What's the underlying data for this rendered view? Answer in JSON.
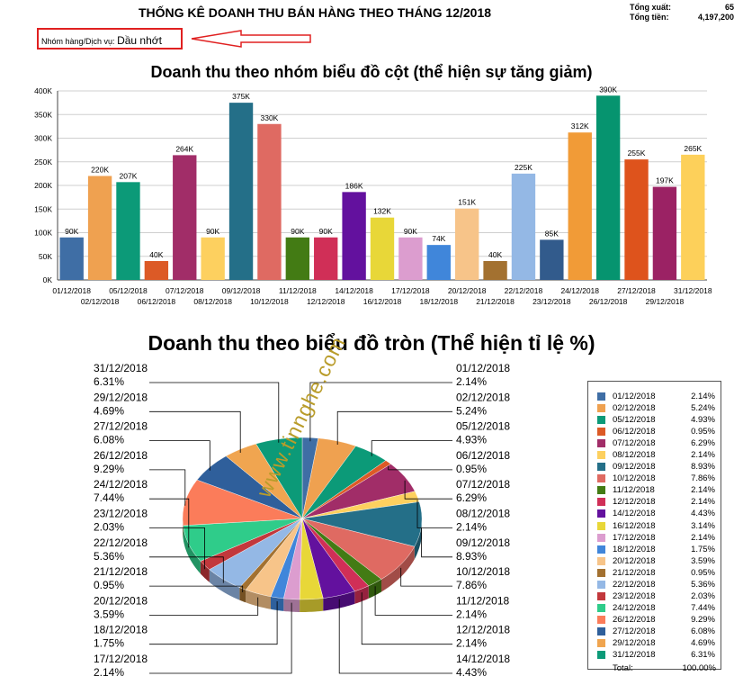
{
  "report": {
    "title": "THỐNG KÊ DOANH THU BÁN HÀNG THEO THÁNG 12/2018",
    "filter_label": "Nhóm hàng/Dịch vụ:",
    "filter_value": "Dầu nhớt",
    "total_export_label": "Tổng xuất:",
    "total_export_value": "65",
    "total_money_label": "Tổng tiền:",
    "total_money_value": "4,197,200"
  },
  "watermark": "www.tinnghe.com",
  "colors": {
    "annotation_red": "#e02020",
    "bar_outline": "#222222",
    "pie_leader": "#000000"
  },
  "chart_data": [
    {
      "type": "bar",
      "title": "Doanh thu theo nhóm biểu đồ cột (thể hiện sự tăng giảm)",
      "ylim": [
        0,
        400000
      ],
      "yticks": [
        "0K",
        "50K",
        "100K",
        "150K",
        "200K",
        "250K",
        "300K",
        "350K",
        "400K"
      ],
      "grid": true,
      "categories": [
        "01/12/2018",
        "02/12/2018",
        "05/12/2018",
        "06/12/2018",
        "07/12/2018",
        "08/12/2018",
        "09/12/2018",
        "10/12/2018",
        "11/12/2018",
        "12/12/2018",
        "14/12/2018",
        "16/12/2018",
        "17/12/2018",
        "18/12/2018",
        "20/12/2018",
        "21/12/2018",
        "22/12/2018",
        "23/12/2018",
        "24/12/2018",
        "26/12/2018",
        "27/12/2018",
        "29/12/2018",
        "31/12/2018"
      ],
      "values": [
        90000,
        220000,
        207000,
        40000,
        264000,
        90000,
        375000,
        330000,
        90000,
        90000,
        186000,
        132000,
        90000,
        74000,
        151000,
        40000,
        225000,
        85000,
        312000,
        390000,
        255000,
        197000,
        265000
      ],
      "value_labels": [
        "90K",
        "220K",
        "207K",
        "40K",
        "264K",
        "90K",
        "375K",
        "330K",
        "90K",
        "90K",
        "186K",
        "132K",
        "90K",
        "74K",
        "151K",
        "40K",
        "225K",
        "85K",
        "312K",
        "390K",
        "255K",
        "197K",
        "265K"
      ],
      "colors": [
        "#3f6ea5",
        "#efa150",
        "#0c9a78",
        "#dc5a26",
        "#a12d68",
        "#fdd05f",
        "#246f88",
        "#df6a62",
        "#437b14",
        "#d02f57",
        "#63119e",
        "#e8d738",
        "#dc9dcf",
        "#4086da",
        "#f7c489",
        "#a37130",
        "#94b8e5",
        "#325b8c",
        "#f19b37",
        "#06946f",
        "#de531c",
        "#9b2264",
        "#fdd05a"
      ]
    },
    {
      "type": "pie",
      "title": "Doanh thu theo biểu đồ tròn (Thể hiện tỉ lệ %)",
      "labels": [
        "01/12/2018",
        "02/12/2018",
        "05/12/2018",
        "06/12/2018",
        "07/12/2018",
        "08/12/2018",
        "09/12/2018",
        "10/12/2018",
        "11/12/2018",
        "12/12/2018",
        "14/12/2018",
        "16/12/2018",
        "17/12/2018",
        "18/12/2018",
        "20/12/2018",
        "21/12/2018",
        "22/12/2018",
        "23/12/2018",
        "24/12/2018",
        "26/12/2018",
        "27/12/2018",
        "29/12/2018",
        "31/12/2018"
      ],
      "values": [
        2.14,
        5.24,
        4.93,
        0.95,
        6.29,
        2.14,
        8.93,
        7.86,
        2.14,
        2.14,
        4.43,
        3.14,
        2.14,
        1.75,
        3.59,
        0.95,
        5.36,
        2.03,
        7.44,
        9.29,
        6.08,
        4.69,
        6.31
      ],
      "value_labels": [
        "2.14%",
        "5.24%",
        "4.93%",
        "0.95%",
        "6.29%",
        "2.14%",
        "8.93%",
        "7.86%",
        "2.14%",
        "2.14%",
        "4.43%",
        "3.14%",
        "2.14%",
        "1.75%",
        "3.59%",
        "0.95%",
        "5.36%",
        "2.03%",
        "7.44%",
        "9.29%",
        "6.08%",
        "4.69%",
        "6.31%"
      ],
      "colors": [
        "#3f6ea5",
        "#efa150",
        "#0c9a78",
        "#dc5a26",
        "#a12d68",
        "#fdd05f",
        "#246f88",
        "#df6a62",
        "#437b14",
        "#d02f57",
        "#63119e",
        "#e8d738",
        "#dc9dcf",
        "#4086da",
        "#f7c489",
        "#a37130",
        "#94b8e5",
        "#c2383c",
        "#2fcc8a",
        "#fb7c5a",
        "#2f5f9b",
        "#f0a550",
        "#0c9a78"
      ],
      "legend_position": "right",
      "legend_total_label": "Total:",
      "legend_total_value": "100.00%"
    }
  ]
}
